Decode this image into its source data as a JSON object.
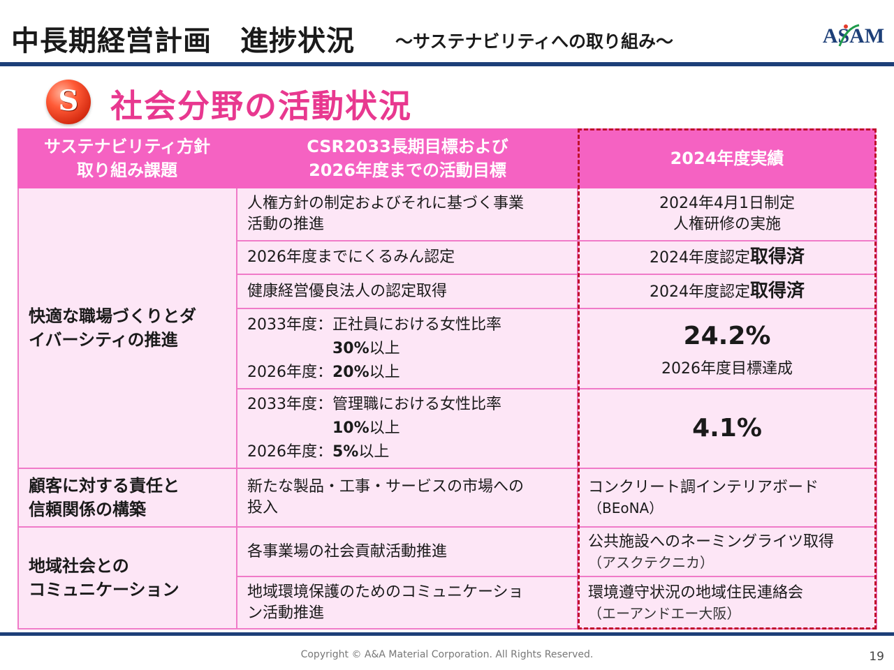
{
  "header": {
    "title": "中長期経営計画　進捗状況",
    "subtitle": "～サステナビリティへの取り組み～",
    "logo_text": "ASAM"
  },
  "section": {
    "badge_letter": "S",
    "title": "社会分野の活動状況"
  },
  "table": {
    "headers": {
      "col1_line1": "サステナビリティ方針",
      "col1_line2": "取り組み課題",
      "col2_line1": "CSR2033長期目標および",
      "col2_line2": "2026年度までの活動目標",
      "col3": "2024年度実績"
    },
    "categories": {
      "workplace_line1": "快適な職場づくりとダ",
      "workplace_line2": "イバーシティの推進",
      "customer_line1": "顧客に対する責任と",
      "customer_line2": "信頼関係の構築",
      "community_line1": "地域社会との",
      "community_line2": "コミュニケーション"
    },
    "rows": [
      {
        "target_line1": "人権方針の制定およびそれに基づく事業",
        "target_line2": "活動の推進",
        "result_line1": "2024年4月1日制定",
        "result_line2": "人権研修の実施"
      },
      {
        "target": "2026年度までにくるみん認定",
        "result_prefix": "2024年度認定",
        "result_bold": "取得済"
      },
      {
        "target": "健康経営優良法人の認定取得",
        "result_prefix": "2024年度認定",
        "result_bold": "取得済"
      },
      {
        "target_line1": "2033年度：正社員における女性比率",
        "target_line2_bold": "30%",
        "target_line2_suffix": "以上",
        "target_line3_prefix": "2026年度：",
        "target_line3_bold": "20%",
        "target_line3_suffix": "以上",
        "result_big": "24.2%",
        "result_note": "2026年度目標達成"
      },
      {
        "target_line1": "2033年度：管理職における女性比率",
        "target_line2_bold": "10%",
        "target_line2_suffix": "以上",
        "target_line3_prefix": "2026年度：",
        "target_line3_bold": "5%",
        "target_line3_suffix": "以上",
        "result_big": "4.1%"
      },
      {
        "target_line1": "新たな製品・工事・サービスの市場への",
        "target_line2": "投入",
        "result_line1": "コンクリート調インテリアボード",
        "result_line2": "（BEoNA）"
      },
      {
        "target": "各事業場の社会貢献活動推進",
        "result_line1": "公共施設へのネーミングライツ取得",
        "result_line2": "（アスクテクニカ）"
      },
      {
        "target_line1": "地域環境保護のためのコミュニケーショ",
        "target_line2": "ン活動推進",
        "result_line1": "環境遵守状況の地域住民連絡会",
        "result_line2": "（エーアンドエー大阪）"
      }
    ]
  },
  "footer": {
    "copyright": "Copyright © A&A Material Corporation. All Rights Reserved.",
    "page_number": "19"
  },
  "colors": {
    "header_pink": "#f562c2",
    "cell_pink": "#fde6f6",
    "accent_pink": "#e8388f",
    "navy": "#1d3f78",
    "dash_red": "#c0102c"
  }
}
